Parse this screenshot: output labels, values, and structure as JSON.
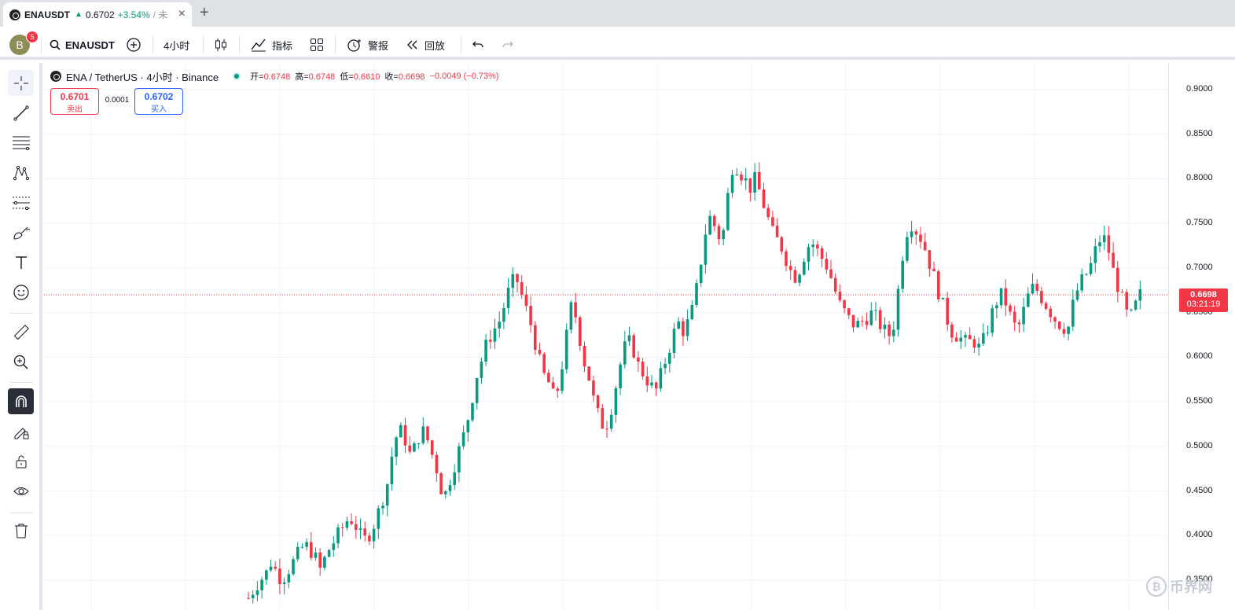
{
  "browser_tab": {
    "symbol": "ENAUSDT",
    "price": "0.6702",
    "change": "+3.54%",
    "rest": "/ 未",
    "close": "×",
    "new_tab": "+"
  },
  "toolbar": {
    "avatar": "B",
    "notifications": "5",
    "symbol": "ENAUSDT",
    "interval": "4小时",
    "indicators": "指标",
    "alerts": "警报",
    "replay": "回放"
  },
  "legend": {
    "title": "ENA / TetherUS · 4小时 · Binance",
    "open_label": "开=",
    "open": "0.6748",
    "high_label": "高=",
    "high": "0.6748",
    "low_label": "低=",
    "low": "0.6610",
    "close_label": "收=",
    "close": "0.6698",
    "change": "−0.0049 (−0.73%)"
  },
  "trade": {
    "sell_price": "0.6701",
    "sell_label": "卖出",
    "spread": "0.0001",
    "buy_price": "0.6702",
    "buy_label": "买入"
  },
  "current_price": {
    "price": "0.6698",
    "countdown": "03:21:19"
  },
  "watermark": "币界网",
  "colors": {
    "up": "#089981",
    "down": "#f23645",
    "accent": "#2962ff"
  },
  "chart_data": {
    "type": "candlestick",
    "y_ticks": [
      "0.9000",
      "0.8500",
      "0.8000",
      "0.7500",
      "0.7000",
      "0.6500",
      "0.6000",
      "0.5500",
      "0.5000",
      "0.4500",
      "0.4000",
      "0.3500"
    ],
    "ylim": [
      0.32,
      0.92
    ],
    "last_price": 0.6698,
    "close_path": [
      0.33,
      0.34,
      0.35,
      0.355,
      0.37,
      0.36,
      0.35,
      0.36,
      0.37,
      0.38,
      0.39,
      0.385,
      0.375,
      0.36,
      0.38,
      0.39,
      0.4,
      0.41,
      0.42,
      0.415,
      0.4,
      0.395,
      0.405,
      0.42,
      0.44,
      0.46,
      0.5,
      0.52,
      0.51,
      0.49,
      0.5,
      0.52,
      0.51,
      0.49,
      0.47,
      0.44,
      0.46,
      0.48,
      0.5,
      0.52,
      0.55,
      0.58,
      0.6,
      0.62,
      0.63,
      0.64,
      0.66,
      0.68,
      0.69,
      0.67,
      0.65,
      0.63,
      0.6,
      0.58,
      0.57,
      0.55,
      0.58,
      0.62,
      0.66,
      0.64,
      0.6,
      0.58,
      0.55,
      0.53,
      0.52,
      0.54,
      0.57,
      0.6,
      0.62,
      0.61,
      0.59,
      0.58,
      0.57,
      0.56,
      0.58,
      0.6,
      0.62,
      0.64,
      0.63,
      0.64,
      0.66,
      0.7,
      0.74,
      0.76,
      0.74,
      0.73,
      0.78,
      0.82,
      0.81,
      0.8,
      0.79,
      0.8,
      0.78,
      0.76,
      0.74,
      0.73,
      0.72,
      0.7,
      0.69,
      0.7,
      0.72,
      0.73,
      0.72,
      0.71,
      0.7,
      0.68,
      0.66,
      0.65,
      0.64,
      0.635,
      0.64,
      0.645,
      0.65,
      0.64,
      0.63,
      0.625,
      0.64,
      0.7,
      0.74,
      0.75,
      0.74,
      0.73,
      0.71,
      0.69,
      0.67,
      0.65,
      0.63,
      0.625,
      0.62,
      0.615,
      0.62,
      0.61,
      0.62,
      0.64,
      0.66,
      0.67,
      0.66,
      0.64,
      0.63,
      0.65,
      0.67,
      0.68,
      0.67,
      0.66,
      0.65,
      0.64,
      0.635,
      0.63,
      0.66,
      0.68,
      0.69,
      0.7,
      0.72,
      0.735,
      0.73,
      0.7,
      0.68,
      0.66,
      0.64,
      0.655,
      0.67
    ]
  }
}
